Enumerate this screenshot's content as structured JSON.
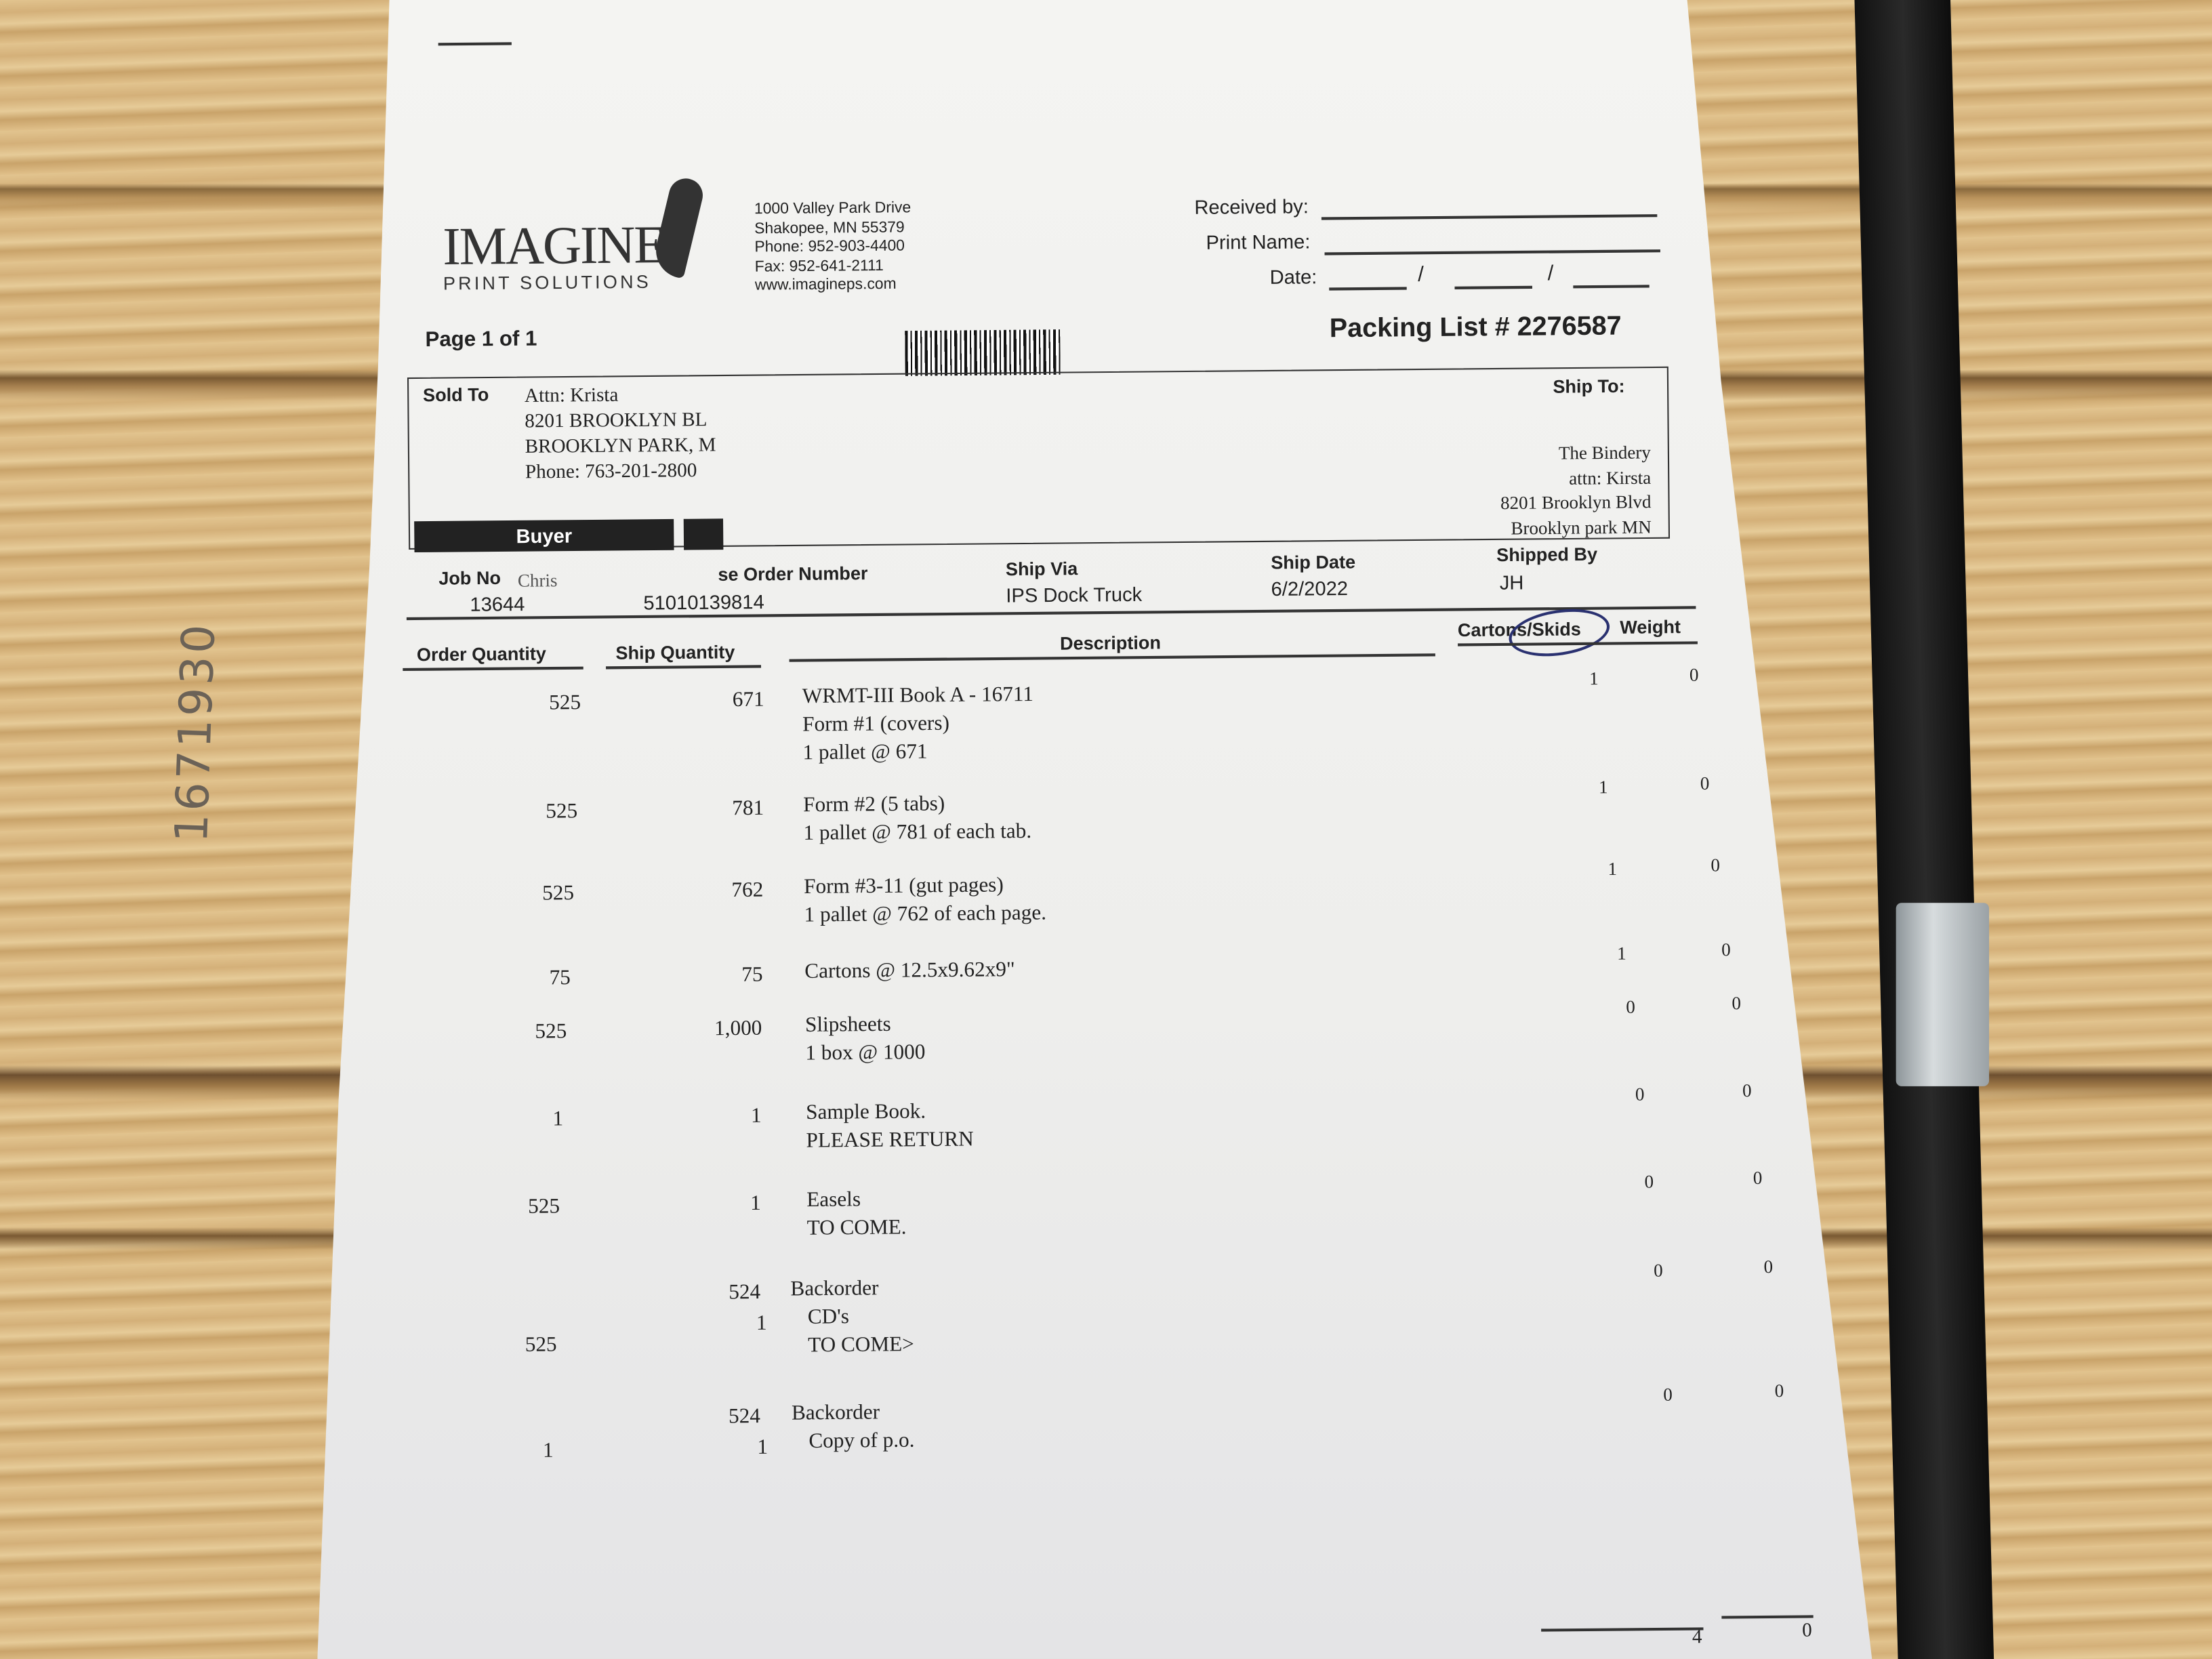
{
  "side_stamp": "1671930",
  "company": {
    "name": "IMAGINE",
    "tagline": "PRINT SOLUTIONS",
    "address": [
      "1000 Valley Park Drive",
      "Shakopee, MN  55379",
      "Phone: 952-903-4400",
      "Fax: 952-641-2111",
      "www.imagineps.com"
    ]
  },
  "receipt": {
    "received_by": "Received by:",
    "print_name": "Print Name:",
    "date": "Date:",
    "sep": "/"
  },
  "page_label": "Page 1 of 1",
  "packing_list": "Packing List # 2276587",
  "sold_to": {
    "label": "Sold To",
    "lines": [
      "Attn: Krista",
      "8201 BROOKLYN BL",
      "BROOKLYN PARK, M",
      "Phone: 763-201-2800"
    ]
  },
  "ship_to": {
    "label": "Ship To:",
    "lines": [
      "The Bindery",
      "attn: Kirsta",
      "8201 Brooklyn Blvd",
      "Brooklyn park MN"
    ]
  },
  "buyer_label": "Buyer",
  "info": {
    "headers": [
      "Job No",
      "se Order Number",
      "Ship Via",
      "Ship Date",
      "Shipped By"
    ],
    "handwritten": "Chris",
    "values": [
      "13644",
      "51010139814",
      "IPS Dock Truck",
      "6/2/2022",
      "JH"
    ]
  },
  "columns": [
    "Order Quantity",
    "Ship Quantity",
    "Description",
    "Cartons/Skids",
    "Weight"
  ],
  "rows": [
    {
      "order": "525",
      "ship": "671",
      "desc": [
        "WRMT-III  Book A - 16711",
        "Form #1 (covers)",
        "1 pallet @ 671"
      ],
      "cartons": "1",
      "weight": "0"
    },
    {
      "order": "525",
      "ship": "781",
      "desc": [
        "Form #2 (5 tabs)",
        "1 pallet @ 781 of each tab."
      ],
      "cartons": "1",
      "weight": "0"
    },
    {
      "order": "525",
      "ship": "762",
      "desc": [
        "Form #3-11 (gut pages)",
        "1 pallet @ 762 of each page."
      ],
      "cartons": "1",
      "weight": "0"
    },
    {
      "order": "75",
      "ship": "75",
      "desc": [
        "Cartons @ 12.5x9.62x9\""
      ],
      "cartons": "1",
      "weight": "0"
    },
    {
      "order": "525",
      "ship": "1,000",
      "desc": [
        "Slipsheets",
        "1 box @ 1000"
      ],
      "cartons": "0",
      "weight": "0"
    },
    {
      "order": "1",
      "ship": "1",
      "desc": [
        "Sample Book.",
        "PLEASE RETURN"
      ],
      "cartons": "0",
      "weight": "0"
    },
    {
      "order": "525",
      "ship": "1",
      "desc": [
        "Easels",
        "TO COME."
      ],
      "cartons": "0",
      "weight": "0"
    },
    {
      "order": "525",
      "ship": "524",
      "ship2": "1",
      "desc": [
        "Backorder",
        "CD's",
        "TO COME>"
      ],
      "cartons": "0",
      "weight": "0"
    },
    {
      "order": "1",
      "ship": "524",
      "ship2": "1",
      "desc": [
        "Backorder",
        "Copy of p.o."
      ],
      "cartons": "0",
      "weight": "0"
    }
  ],
  "totals": {
    "cartons": "4",
    "weight": "0"
  }
}
